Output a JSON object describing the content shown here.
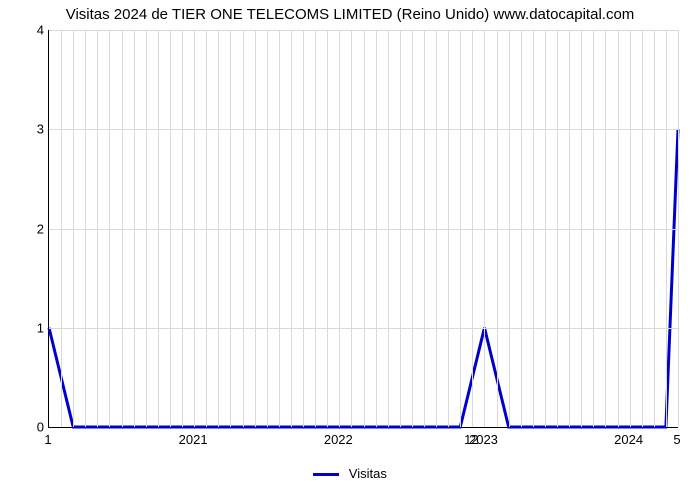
{
  "chart": {
    "type": "line",
    "title": "Visitas 2024 de TIER ONE TELECOMS LIMITED (Reino Unido) www.datocapital.com",
    "title_fontsize": 15,
    "background_color": "#ffffff",
    "grid_color": "#d9d9d9",
    "axis_color": "#000000",
    "ylim": [
      0,
      4
    ],
    "ytick_step": 1,
    "yticks": [
      "0",
      "1",
      "2",
      "3",
      "4"
    ],
    "ytick_fontsize": 13,
    "x_span_months": 52,
    "year_labels": [
      {
        "label": "2021",
        "month_index": 12
      },
      {
        "label": "2022",
        "month_index": 24
      },
      {
        "label": "2023",
        "month_index": 36
      },
      {
        "label": "2024",
        "month_index": 48
      }
    ],
    "sub_labels": [
      {
        "label": "1",
        "month_index": 0
      },
      {
        "label": "12",
        "month_index": 35
      },
      {
        "label": "5",
        "month_index": 52
      }
    ],
    "series": {
      "name": "Visitas",
      "color": "#0000cc",
      "line_width": 3,
      "points_x_month": [
        0,
        2,
        34,
        36,
        38,
        51,
        52
      ],
      "points_y": [
        1,
        0,
        0,
        1,
        0,
        0,
        3
      ]
    },
    "legend_label": "Visitas"
  }
}
